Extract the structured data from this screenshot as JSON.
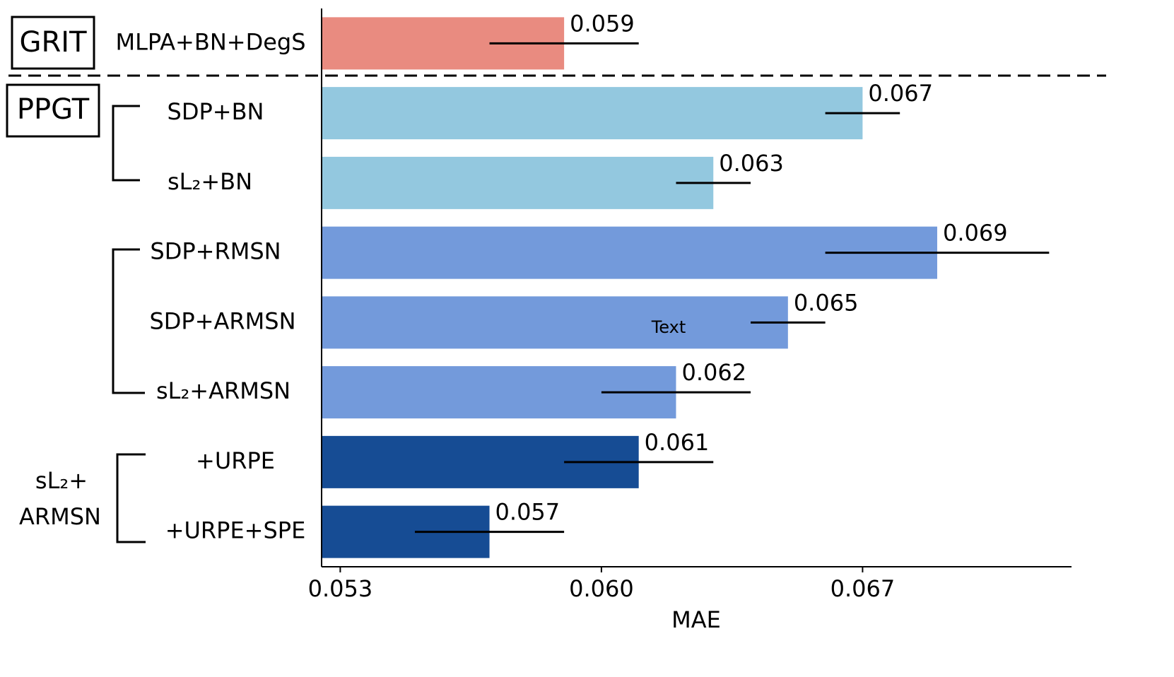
{
  "chart_data": {
    "type": "bar",
    "orientation": "horizontal",
    "categories": [
      "MLPA+BN+DegS",
      "SDP+BN",
      "sL₂+BN",
      "SDP+RMSN",
      "SDP+ARMSN",
      "sL₂+ARMSN",
      "+URPE",
      "+URPE+SPE"
    ],
    "values": [
      0.059,
      0.067,
      0.063,
      0.069,
      0.065,
      0.062,
      0.061,
      0.057
    ],
    "errors": [
      0.002,
      0.001,
      0.001,
      0.003,
      0.001,
      0.002,
      0.002,
      0.002
    ],
    "colors": [
      "#e98b80",
      "#93c8df",
      "#93c8df",
      "#739adb",
      "#739adb",
      "#739adb",
      "#164c94",
      "#164c94"
    ],
    "xlim": [
      0.0525,
      0.0726
    ],
    "xticks": [
      0.053,
      {
        "value": 0.06,
        "label": "0.060"
      },
      0.067
    ],
    "xlabel": "MAE",
    "groups": [
      {
        "label": "GRIT"
      },
      {
        "label": "PPGT"
      },
      {
        "label_lines": [
          "sL₂+",
          "ARMSN"
        ]
      }
    ],
    "annotations": [
      {
        "text": "Text"
      }
    ]
  }
}
